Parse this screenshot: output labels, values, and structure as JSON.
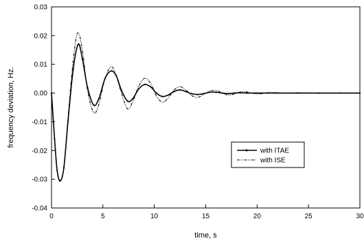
{
  "chart_data": {
    "type": "line",
    "title": "",
    "xlabel": "time, s",
    "ylabel": "frequency deviation, Hz.",
    "xlim": [
      0,
      30
    ],
    "ylim": [
      -0.04,
      0.03
    ],
    "x_ticks": [
      0,
      5,
      10,
      15,
      20,
      25,
      30
    ],
    "y_ticks": [
      -0.04,
      -0.03,
      -0.02,
      -0.01,
      0.0,
      0.01,
      0.02,
      0.03
    ],
    "x_tick_labels": [
      "0",
      "5",
      "10",
      "15",
      "20",
      "25",
      "30"
    ],
    "y_tick_labels": [
      "-0.04",
      "-0.03",
      "-0.02",
      "-0.01",
      "0.00",
      "0.01",
      "0.02",
      "0.03"
    ],
    "grid": false,
    "legend_position": "lower-right",
    "series": [
      {
        "name": "with ITAE",
        "style": "solid-with-dots",
        "color": "#000000",
        "points": [
          [
            0,
            0
          ],
          [
            0.3,
            -0.016
          ],
          [
            0.55,
            -0.027
          ],
          [
            0.85,
            -0.0305
          ],
          [
            1.2,
            -0.026
          ],
          [
            1.6,
            -0.01
          ],
          [
            2.1,
            0.008
          ],
          [
            2.6,
            0.017
          ],
          [
            3.0,
            0.012
          ],
          [
            3.5,
            0.002
          ],
          [
            4.1,
            -0.0042
          ],
          [
            4.6,
            -0.002
          ],
          [
            5.2,
            0.005
          ],
          [
            5.8,
            0.0077
          ],
          [
            6.3,
            0.006
          ],
          [
            6.8,
            0.001
          ],
          [
            7.4,
            -0.0028
          ],
          [
            7.9,
            -0.002
          ],
          [
            8.5,
            0.0015
          ],
          [
            9.1,
            0.003
          ],
          [
            9.7,
            0.002
          ],
          [
            10.2,
            0
          ],
          [
            10.8,
            -0.0012
          ],
          [
            11.4,
            -0.0006
          ],
          [
            11.9,
            0.0005
          ],
          [
            12.5,
            0.0011
          ],
          [
            13.1,
            0.0005
          ],
          [
            13.6,
            -0.0002
          ],
          [
            14.2,
            -0.0005
          ],
          [
            14.8,
            -0.0002
          ],
          [
            15.4,
            0.0003
          ],
          [
            16.0,
            0.0003
          ],
          [
            16.6,
            0
          ],
          [
            17.2,
            -0.0002
          ],
          [
            17.8,
            0
          ],
          [
            18.4,
            0.0001
          ],
          [
            19.0,
            0
          ],
          [
            20.0,
            0
          ],
          [
            21.0,
            0
          ],
          [
            22.0,
            0
          ],
          [
            24.0,
            0
          ],
          [
            26.0,
            0
          ],
          [
            28.0,
            0
          ],
          [
            30.0,
            0
          ]
        ]
      },
      {
        "name": "with ISE",
        "style": "dash-dot-dot",
        "color": "#000000",
        "points": [
          [
            0,
            0
          ],
          [
            0.3,
            -0.016
          ],
          [
            0.55,
            -0.027
          ],
          [
            0.85,
            -0.0308
          ],
          [
            1.2,
            -0.026
          ],
          [
            1.6,
            -0.009
          ],
          [
            2.1,
            0.011
          ],
          [
            2.55,
            0.021
          ],
          [
            3.0,
            0.015
          ],
          [
            3.5,
            0.001
          ],
          [
            4.1,
            -0.0068
          ],
          [
            4.6,
            -0.004
          ],
          [
            5.2,
            0.005
          ],
          [
            5.8,
            0.0092
          ],
          [
            6.3,
            0.006
          ],
          [
            6.8,
            0
          ],
          [
            7.4,
            -0.0055
          ],
          [
            7.9,
            -0.003
          ],
          [
            8.5,
            0.0025
          ],
          [
            9.1,
            0.0052
          ],
          [
            9.7,
            0.003
          ],
          [
            10.2,
            -0.001
          ],
          [
            10.8,
            -0.0032
          ],
          [
            11.4,
            -0.0015
          ],
          [
            11.9,
            0.001
          ],
          [
            12.5,
            0.0022
          ],
          [
            13.1,
            0.001
          ],
          [
            13.6,
            -0.0008
          ],
          [
            14.2,
            -0.0015
          ],
          [
            14.8,
            -0.0005
          ],
          [
            15.4,
            0.0007
          ],
          [
            16.0,
            0.0009
          ],
          [
            16.6,
            0.0001
          ],
          [
            17.2,
            -0.0007
          ],
          [
            17.8,
            -0.0003
          ],
          [
            18.4,
            0.0004
          ],
          [
            19.0,
            0.0004
          ],
          [
            19.6,
            -0.0001
          ],
          [
            20.2,
            -0.0003
          ],
          [
            20.8,
            0
          ],
          [
            21.4,
            0.0002
          ],
          [
            22.0,
            0.0001
          ],
          [
            22.6,
            -0.0001
          ],
          [
            23.4,
            0
          ],
          [
            24.0,
            0.0001
          ],
          [
            25.0,
            0
          ],
          [
            26.0,
            0
          ],
          [
            28.0,
            0
          ],
          [
            30.0,
            0
          ]
        ]
      }
    ]
  }
}
